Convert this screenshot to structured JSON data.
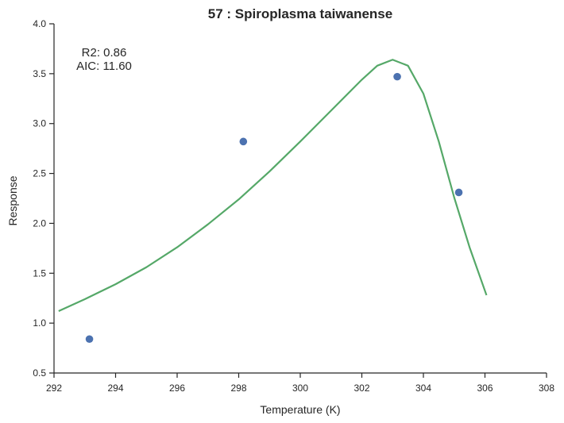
{
  "chart_data": {
    "type": "scatter",
    "title": "57 : Spiroplasma taiwanense",
    "xlabel": "Temperature (K)",
    "ylabel": "Response",
    "xlim": [
      292,
      308
    ],
    "ylim": [
      0.5,
      4.0
    ],
    "xticks": [
      292,
      294,
      296,
      298,
      300,
      302,
      304,
      306,
      308
    ],
    "yticks": [
      0.5,
      1.0,
      1.5,
      2.0,
      2.5,
      3.0,
      3.5,
      4.0
    ],
    "xtick_labels": [
      "292",
      "294",
      "296",
      "298",
      "300",
      "302",
      "304",
      "306",
      "308"
    ],
    "ytick_labels": [
      "0.5",
      "1.0",
      "1.5",
      "2.0",
      "2.5",
      "3.0",
      "3.5",
      "4.0"
    ],
    "grid": false,
    "annotations": [
      "R2: 0.86",
      "AIC: 11.60"
    ],
    "series": [
      {
        "type": "scatter",
        "color": "#4c72b0",
        "x": [
          293.15,
          298.15,
          303.15,
          305.15
        ],
        "y": [
          0.84,
          2.82,
          3.47,
          2.31
        ]
      },
      {
        "type": "line",
        "color": "#55a868",
        "x": [
          292.15,
          293.0,
          294.0,
          295.0,
          296.0,
          297.0,
          298.0,
          299.0,
          300.0,
          301.0,
          302.0,
          302.5,
          303.0,
          303.5,
          304.0,
          304.5,
          305.0,
          305.5,
          306.05
        ],
        "y": [
          1.12,
          1.24,
          1.39,
          1.56,
          1.76,
          1.99,
          2.24,
          2.52,
          2.82,
          3.13,
          3.44,
          3.58,
          3.64,
          3.58,
          3.3,
          2.82,
          2.26,
          1.76,
          1.28
        ]
      }
    ]
  }
}
